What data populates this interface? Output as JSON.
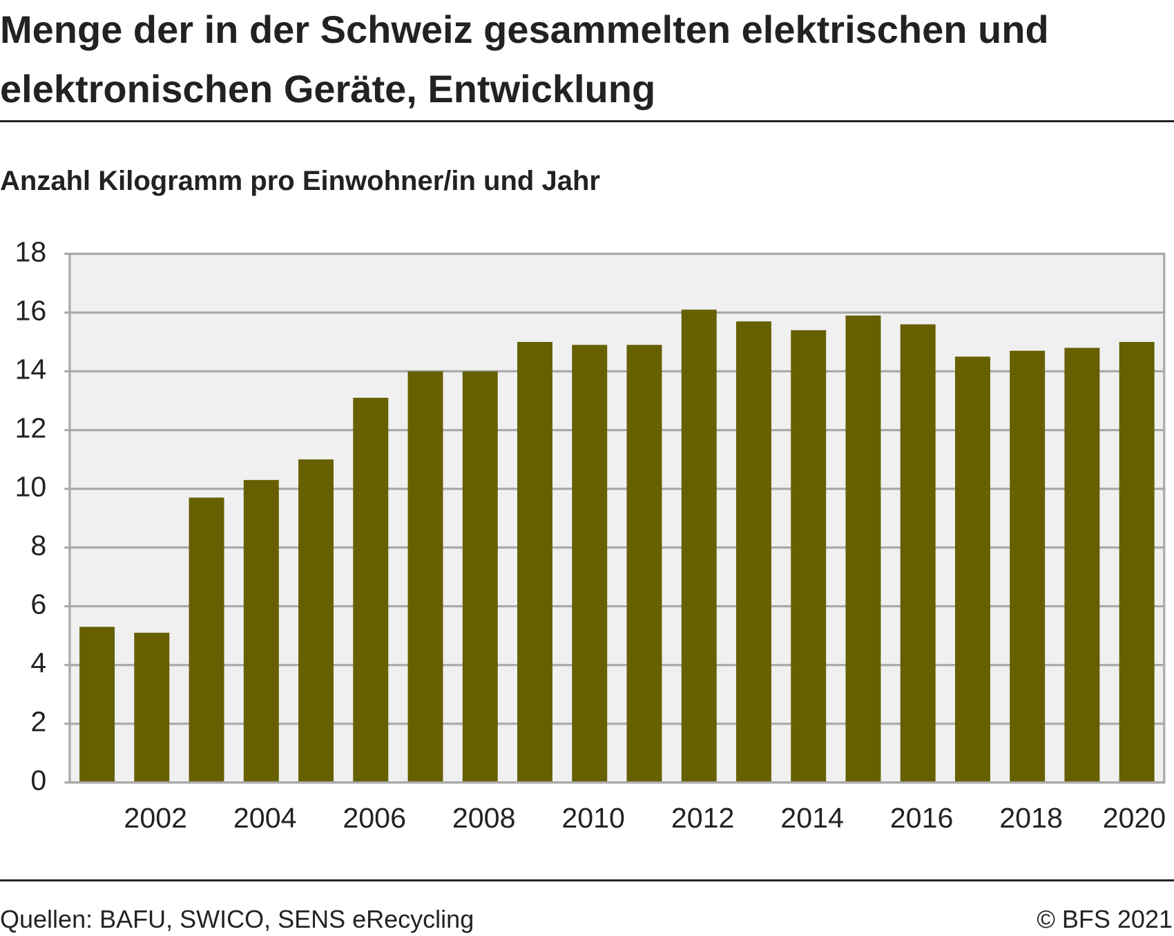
{
  "chart_data": {
    "type": "bar",
    "title": "Menge der in der Schweiz gesammelten elektrischen und elektronischen Geräte, Entwicklung",
    "subtitle": "Anzahl Kilogramm pro Einwohner/in und Jahr",
    "categories": [
      null,
      "2002",
      null,
      "2004",
      null,
      "2006",
      null,
      "2008",
      null,
      "2010",
      null,
      "2012",
      null,
      "2014",
      null,
      "2016",
      null,
      "2018",
      null,
      "2020"
    ],
    "values": [
      5.3,
      5.1,
      9.7,
      10.3,
      11.0,
      13.1,
      14.0,
      14.0,
      15.0,
      14.9,
      14.9,
      16.1,
      15.7,
      15.4,
      15.9,
      15.6,
      14.5,
      14.7,
      14.8,
      15.0
    ],
    "color": "#666000",
    "ylim": [
      0,
      18
    ],
    "yticks": [
      0,
      2,
      4,
      6,
      8,
      10,
      12,
      14,
      16,
      18
    ],
    "grid": true,
    "source": "Quellen: BAFU, SWICO, SENS eRecycling",
    "copyright": "© BFS 2021"
  }
}
